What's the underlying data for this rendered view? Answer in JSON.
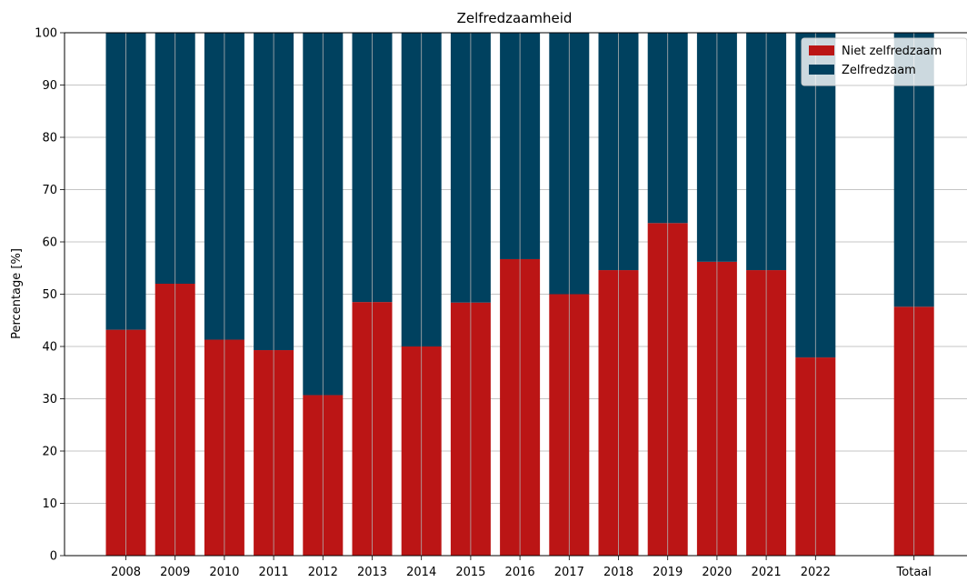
{
  "chart_data": {
    "type": "bar",
    "stacked": true,
    "title": "Zelfredzaamheid",
    "xlabel": "",
    "ylabel": "Percentage [%]",
    "ylim": [
      0,
      100
    ],
    "yticks": [
      0,
      10,
      20,
      30,
      40,
      50,
      60,
      70,
      80,
      90,
      100
    ],
    "grid": true,
    "legend_position": "top-right",
    "categories": [
      "2008",
      "2009",
      "2010",
      "2011",
      "2012",
      "2013",
      "2014",
      "2015",
      "2016",
      "2017",
      "2018",
      "2019",
      "2020",
      "2021",
      "2022",
      "",
      "Totaal"
    ],
    "series": [
      {
        "name": "Niet zelfredzaam",
        "color": "#bb1515",
        "values": [
          43.2,
          52.0,
          41.3,
          39.3,
          30.7,
          48.5,
          40.0,
          48.4,
          56.7,
          50.0,
          54.6,
          63.6,
          56.2,
          54.6,
          37.9,
          null,
          47.6
        ]
      },
      {
        "name": "Zelfredzaam",
        "color": "#00415f",
        "values": [
          56.8,
          48.0,
          58.7,
          60.7,
          69.3,
          51.5,
          60.0,
          51.6,
          43.3,
          50.0,
          45.4,
          36.4,
          43.8,
          45.4,
          62.1,
          null,
          52.4
        ]
      }
    ]
  }
}
